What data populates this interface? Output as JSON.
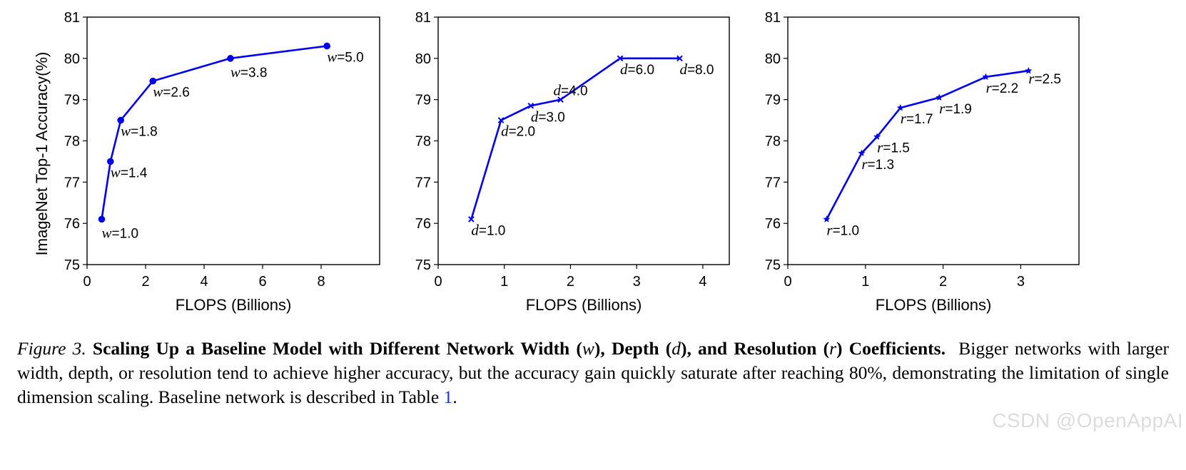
{
  "chart_data": [
    {
      "type": "line",
      "marker": "circle",
      "param": "w",
      "xlabel": "FLOPS (Billions)",
      "ylabel": "ImageNet Top-1 Accuracy(%)",
      "xlim": [
        0,
        10
      ],
      "ylim": [
        75,
        81
      ],
      "xticks": [
        0,
        2,
        4,
        6,
        8
      ],
      "yticks": [
        75,
        76,
        77,
        78,
        79,
        80,
        81
      ],
      "x": [
        0.5,
        0.8,
        1.15,
        2.25,
        4.9,
        8.2
      ],
      "y": [
        76.1,
        77.5,
        78.5,
        79.45,
        80.0,
        80.3
      ],
      "labels": [
        "w=1.0",
        "w=1.4",
        "w=1.8",
        "w=2.6",
        "w=3.8",
        "w=5.0"
      ],
      "color": "#0000ee"
    },
    {
      "type": "line",
      "marker": "x",
      "param": "d",
      "xlabel": "FLOPS (Billions)",
      "ylabel": "",
      "xlim": [
        0,
        4.4
      ],
      "ylim": [
        75,
        81
      ],
      "xticks": [
        0,
        1,
        2,
        3,
        4
      ],
      "yticks": [
        75,
        76,
        77,
        78,
        79,
        80,
        81
      ],
      "x": [
        0.5,
        0.95,
        1.4,
        1.85,
        2.75,
        3.65
      ],
      "y": [
        76.1,
        78.5,
        78.85,
        79.0,
        80.0,
        80.0
      ],
      "labels": [
        "d=1.0",
        "d=2.0",
        "d=3.0",
        "d=4.0",
        "d=6.0",
        "d=8.0"
      ],
      "color": "#0000ee"
    },
    {
      "type": "line",
      "marker": "star",
      "param": "r",
      "xlabel": "FLOPS (Billions)",
      "ylabel": "",
      "xlim": [
        0,
        3.75
      ],
      "ylim": [
        75,
        81
      ],
      "xticks": [
        0,
        1,
        2,
        3
      ],
      "yticks": [
        75,
        76,
        77,
        78,
        79,
        80,
        81
      ],
      "x": [
        0.5,
        0.95,
        1.15,
        1.45,
        1.95,
        2.55,
        3.1
      ],
      "y": [
        76.1,
        77.7,
        78.1,
        78.8,
        79.05,
        79.55,
        79.7
      ],
      "labels": [
        "r=1.0",
        "r=1.3",
        "r=1.5",
        "r=1.7",
        "r=1.9",
        "r=2.2",
        "r=2.5"
      ],
      "color": "#0000ee"
    }
  ],
  "caption": {
    "figure_label": "Figure 3.",
    "bold_part1": "Scaling Up a Baseline Model with Different Network Width (",
    "var_w": "w",
    "bold_part2": "), Depth (",
    "var_d": "d",
    "bold_part3": "), and Resolution (",
    "var_r": "r",
    "bold_part4": ") Coefficients.",
    "body": "Bigger networks with larger width, depth, or resolution tend to achieve higher accuracy, but the accuracy gain quickly saturate after reaching 80%, demonstrating the limitation of single dimension scaling. Baseline network is described in Table",
    "ref": "1",
    "end": "."
  },
  "watermark": "CSDN @OpenAppAI"
}
